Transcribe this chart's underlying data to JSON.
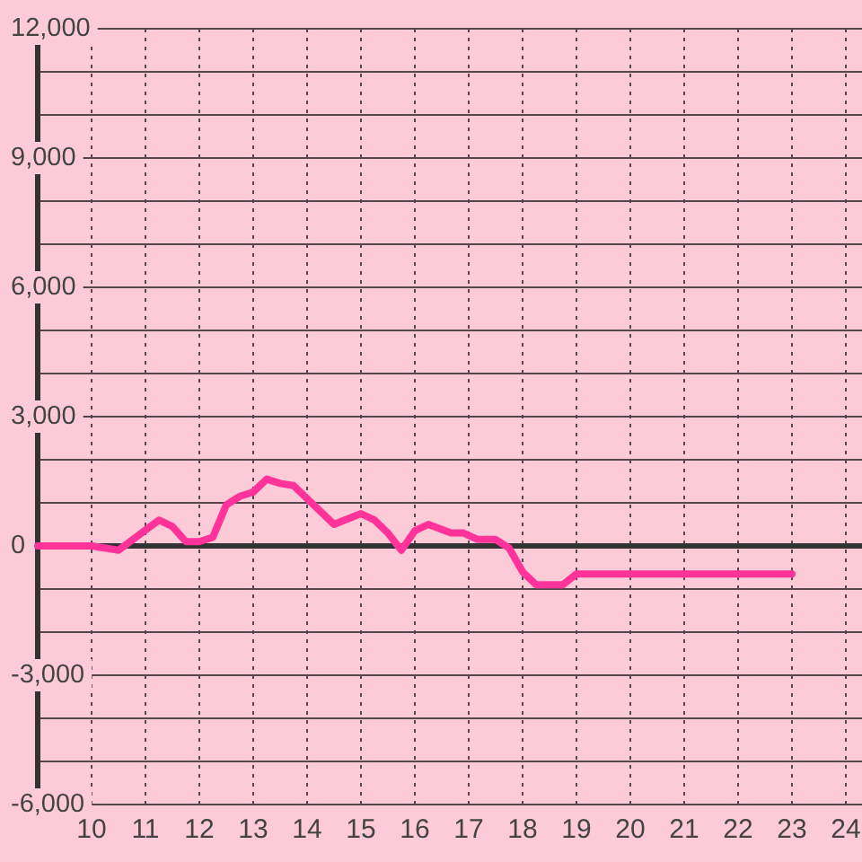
{
  "chart_data": {
    "type": "line",
    "x": [
      9,
      10,
      10.5,
      11.25,
      11.5,
      11.75,
      12,
      12.25,
      12.5,
      12.75,
      13,
      13.25,
      13.5,
      13.75,
      14.5,
      15,
      15.25,
      15.5,
      15.75,
      16,
      16.25,
      16.67,
      16.9,
      17.17,
      17.5,
      17.75,
      18,
      18.25,
      18.75,
      19,
      23
    ],
    "series": [
      {
        "color": "#ff3399",
        "values": [
          0,
          0,
          -100,
          600,
          450,
          100,
          100,
          200,
          950,
          1150,
          1250,
          1550,
          1450,
          1400,
          500,
          750,
          600,
          300,
          -100,
          350,
          500,
          300,
          300,
          150,
          150,
          -50,
          -600,
          -900,
          -900,
          -650,
          -650
        ]
      }
    ],
    "xlim": [
      9,
      24.3
    ],
    "ylim": [
      -6000,
      12000
    ],
    "xticks": [
      10,
      11,
      12,
      13,
      14,
      15,
      16,
      17,
      18,
      19,
      20,
      21,
      22,
      23,
      24
    ],
    "yticks": [
      {
        "value": -6000,
        "label": "-6,000"
      },
      {
        "value": -5000,
        "label": null
      },
      {
        "value": -4000,
        "label": null
      },
      {
        "value": -3000,
        "label": "-3,000"
      },
      {
        "value": -2000,
        "label": null
      },
      {
        "value": -1000,
        "label": null
      },
      0,
      {
        "value": 1000,
        "label": null
      },
      {
        "value": 2000,
        "label": null
      },
      {
        "value": 3000,
        "label": "3,000"
      },
      {
        "value": 4000,
        "label": null
      },
      {
        "value": 5000,
        "label": null
      },
      {
        "value": 6000,
        "label": "6,000"
      },
      {
        "value": 7000,
        "label": null
      },
      {
        "value": 8000,
        "label": null
      },
      {
        "value": 9000,
        "label": "9,000"
      },
      {
        "value": 10000,
        "label": null
      },
      {
        "value": 11000,
        "label": null
      },
      {
        "value": 12000,
        "label": "12,000"
      }
    ],
    "grid": true,
    "ref_lines": [
      {
        "axis": "y",
        "value": 0,
        "color": "#333333"
      }
    ],
    "marker": "none",
    "line_style": "solid"
  }
}
